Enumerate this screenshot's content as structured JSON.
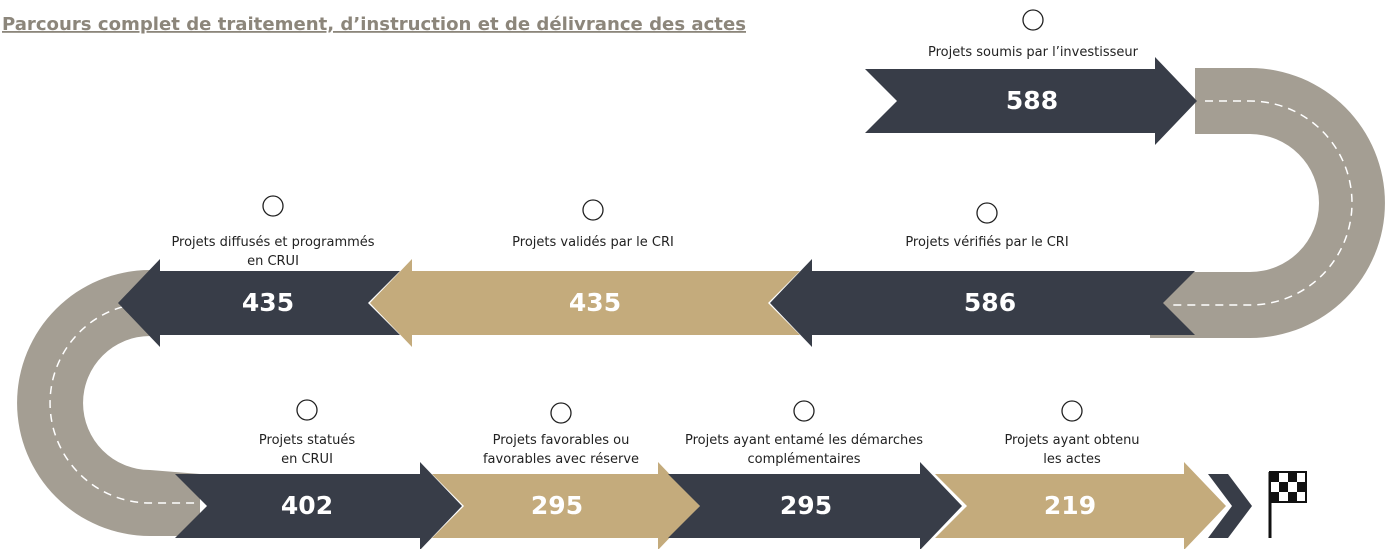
{
  "header": {
    "title": "Parcours complet de traitement, d’instruction et de délivrance des actes"
  },
  "steps": [
    {
      "label": [
        "Projets soumis par l’investisseur"
      ],
      "value": 588
    },
    {
      "label": [
        "Projets vérifiés par le CRI"
      ],
      "value": 586
    },
    {
      "label": [
        "Projets validés par le CRI"
      ],
      "value": 435
    },
    {
      "label": [
        "Projets diffusés et programmés",
        "en CRUI"
      ],
      "value": 435
    },
    {
      "label": [
        "Projets statués",
        "en CRUI"
      ],
      "value": 402
    },
    {
      "label": [
        "Projets favorables ou",
        "favorables avec réserve"
      ],
      "value": 295
    },
    {
      "label": [
        "Projets ayant entamé les démarches",
        "complémentaires"
      ],
      "value": 295
    },
    {
      "label": [
        "Projets ayant obtenu",
        "les actes"
      ],
      "value": 219
    }
  ]
}
